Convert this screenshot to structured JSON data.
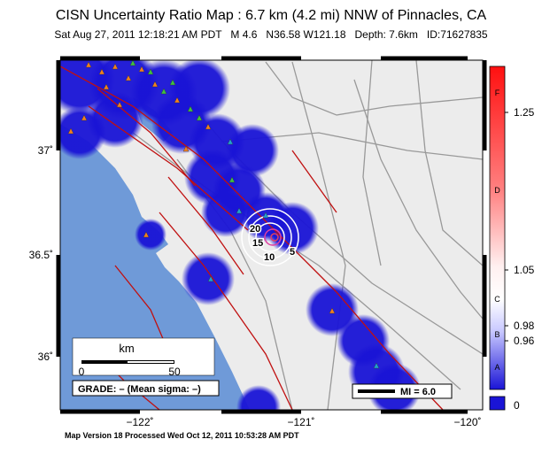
{
  "header": {
    "title": "CISN Uncertainty Ratio Map : 6.7 km (4.2 mi) NNW of Pinnacles, CA",
    "subtitle": "Sat Aug 27, 2011 12:18:21 AM PDT   M 4.6   N36.58 W121.18   Depth: 7.6km   ID:71627835"
  },
  "map": {
    "lat_labels": [
      "37˚",
      "36.5˚",
      "36˚"
    ],
    "lon_labels": [
      "−122˚",
      "−121˚",
      "−120˚"
    ],
    "contour_labels": [
      "20",
      "15",
      "10",
      "5"
    ],
    "scale": {
      "unit": "km",
      "start": "0",
      "end": "50"
    },
    "grade": "GRADE: – (Mean sigma: –)",
    "legend": "MI = 6.0"
  },
  "colorbar": {
    "grades": [
      "F",
      "D",
      "C",
      "B",
      "A"
    ],
    "values": [
      "1.25",
      "1.05",
      "0.98",
      "0.96",
      "0"
    ]
  },
  "footer": "Map Version 18 Processed Wed Oct 12, 2011 10:53:28 AM PDT"
}
